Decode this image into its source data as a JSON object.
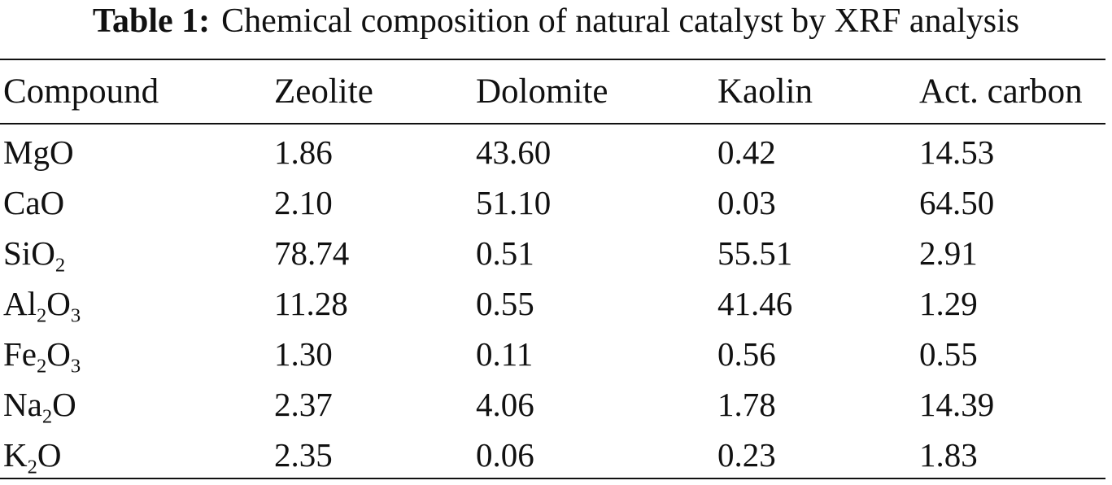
{
  "caption": {
    "label": "Table 1:",
    "text": "Chemical composition of natural catalyst by XRF analysis"
  },
  "table": {
    "columns": [
      "Compound",
      "Zeolite",
      "Dolomite",
      "Kaolin",
      "Act. carbon"
    ],
    "rows": [
      {
        "compound": [
          {
            "t": "MgO"
          }
        ],
        "values": [
          "1.86",
          "43.60",
          "0.42",
          "14.53"
        ]
      },
      {
        "compound": [
          {
            "t": "CaO"
          }
        ],
        "values": [
          "2.10",
          "51.10",
          "0.03",
          "64.50"
        ]
      },
      {
        "compound": [
          {
            "t": "SiO"
          },
          {
            "sub": "2"
          }
        ],
        "values": [
          "78.74",
          "0.51",
          "55.51",
          "2.91"
        ]
      },
      {
        "compound": [
          {
            "t": "Al"
          },
          {
            "sub": "2"
          },
          {
            "t": "O"
          },
          {
            "sub": "3"
          }
        ],
        "values": [
          "11.28",
          "0.55",
          "41.46",
          "1.29"
        ]
      },
      {
        "compound": [
          {
            "t": "Fe"
          },
          {
            "sub": "2"
          },
          {
            "t": "O"
          },
          {
            "sub": "3"
          }
        ],
        "values": [
          "1.30",
          "0.11",
          "0.56",
          "0.55"
        ]
      },
      {
        "compound": [
          {
            "t": "Na"
          },
          {
            "sub": "2"
          },
          {
            "t": "O"
          }
        ],
        "values": [
          "2.37",
          "4.06",
          "1.78",
          "14.39"
        ]
      },
      {
        "compound": [
          {
            "t": "K"
          },
          {
            "sub": "2"
          },
          {
            "t": "O"
          }
        ],
        "values": [
          "2.35",
          "0.06",
          "0.23",
          "1.83"
        ]
      }
    ]
  }
}
